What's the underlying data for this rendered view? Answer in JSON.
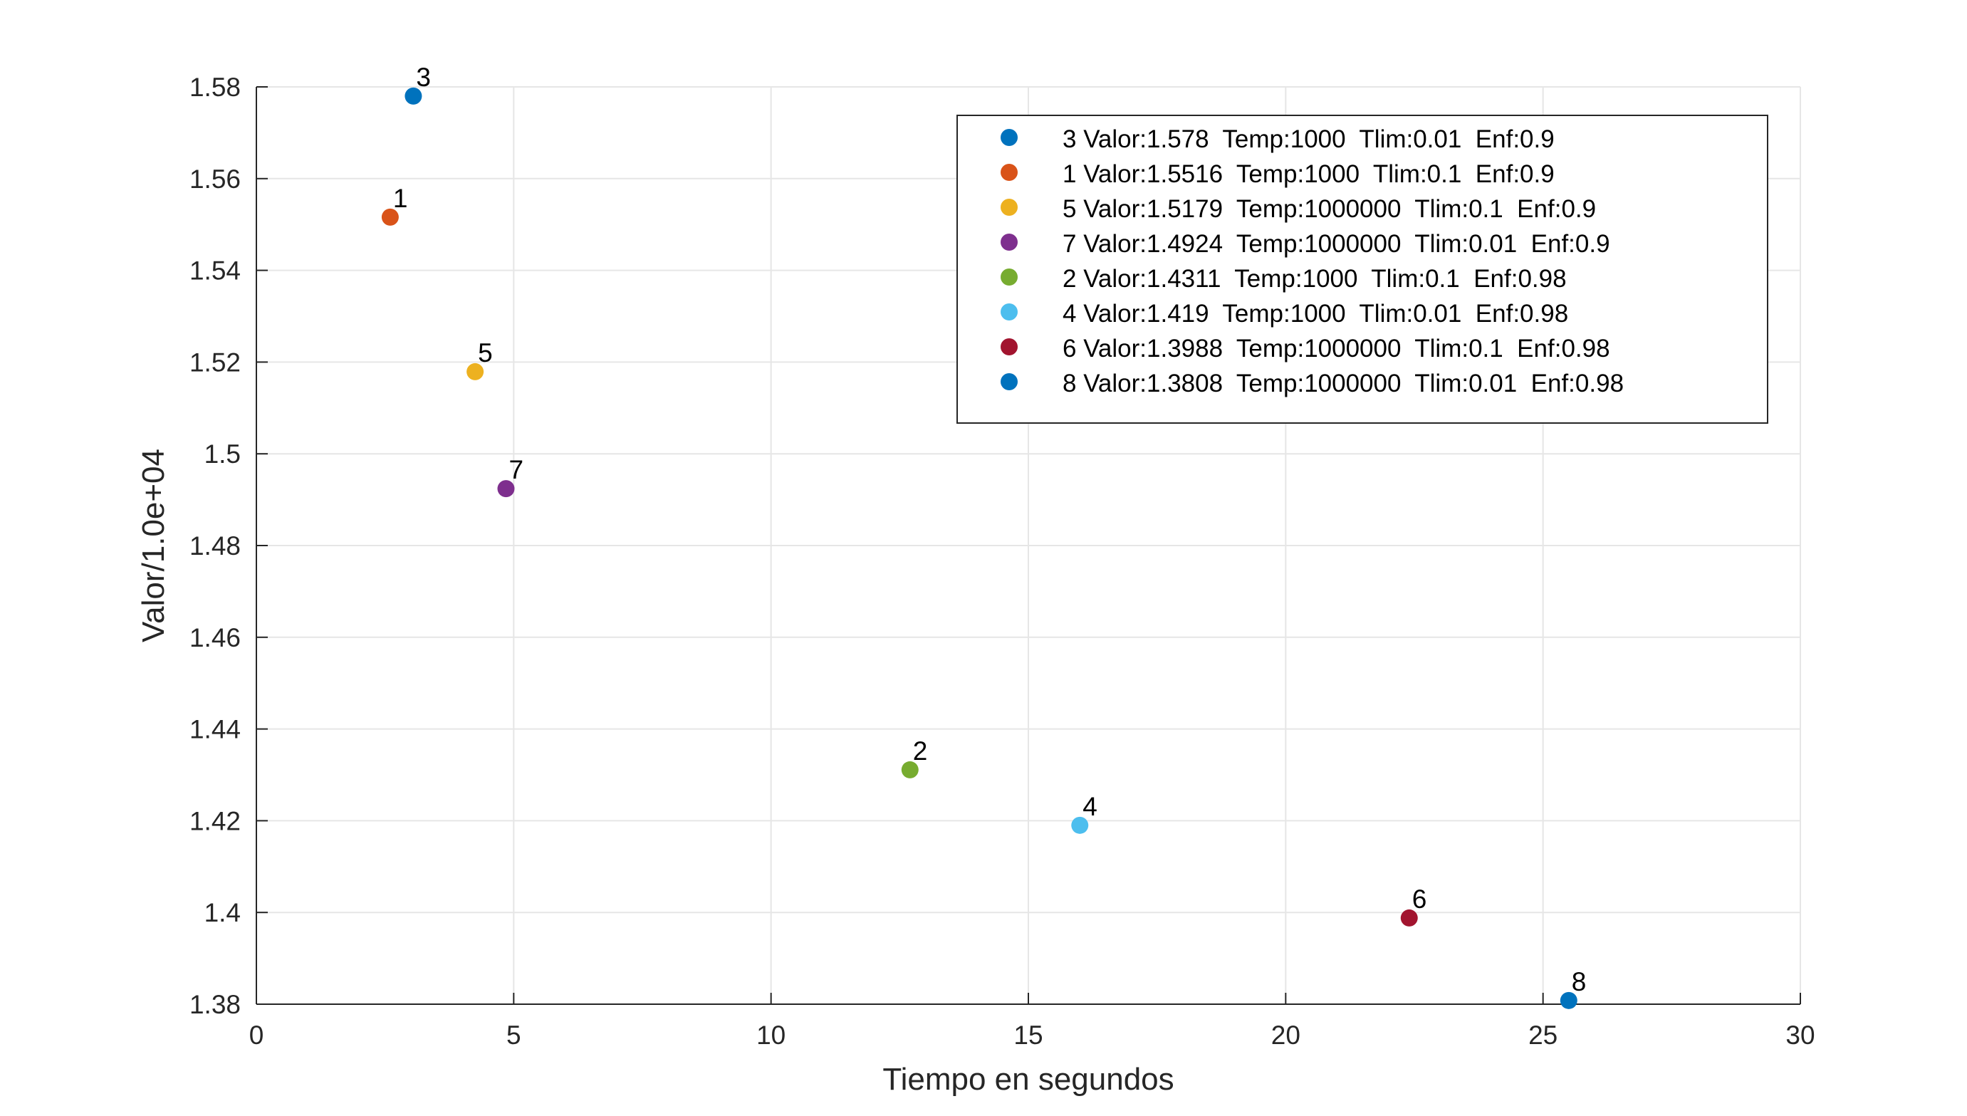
{
  "chart_data": {
    "type": "scatter",
    "xlabel": "Tiempo en segundos",
    "ylabel": "Valor/1.0e+04",
    "xlim": [
      0,
      30
    ],
    "ylim": [
      1.38,
      1.58
    ],
    "xticks": [
      "0",
      "5",
      "10",
      "15",
      "20",
      "25",
      "30"
    ],
    "yticks": [
      "1.38",
      "1.4",
      "1.42",
      "1.44",
      "1.46",
      "1.48",
      "1.5",
      "1.52",
      "1.54",
      "1.56",
      "1.58"
    ],
    "grid": true,
    "legend_position": "top-right",
    "series": [
      {
        "name": "3 Valor:1.578  Temp:1000  Tlim:0.01  Enf:0.9",
        "label": "3",
        "x": 3.05,
        "y": 1.578,
        "color": "#0072BD"
      },
      {
        "name": "1 Valor:1.5516  Temp:1000  Tlim:0.1  Enf:0.9",
        "label": "1",
        "x": 2.6,
        "y": 1.5516,
        "color": "#D95319"
      },
      {
        "name": "5 Valor:1.5179  Temp:1000000  Tlim:0.1  Enf:0.9",
        "label": "5",
        "x": 4.25,
        "y": 1.5179,
        "color": "#EDB120"
      },
      {
        "name": "7 Valor:1.4924  Temp:1000000  Tlim:0.01  Enf:0.9",
        "label": "7",
        "x": 4.85,
        "y": 1.4924,
        "color": "#7E2F8E"
      },
      {
        "name": "2 Valor:1.4311  Temp:1000  Tlim:0.1  Enf:0.98",
        "label": "2",
        "x": 12.7,
        "y": 1.4311,
        "color": "#77AC30"
      },
      {
        "name": "4 Valor:1.419  Temp:1000  Tlim:0.01  Enf:0.98",
        "label": "4",
        "x": 16.0,
        "y": 1.419,
        "color": "#4DBEEE"
      },
      {
        "name": "6 Valor:1.3988  Temp:1000000  Tlim:0.1  Enf:0.98",
        "label": "6",
        "x": 22.4,
        "y": 1.3988,
        "color": "#A2142F"
      },
      {
        "name": "8 Valor:1.3808  Temp:1000000  Tlim:0.01  Enf:0.98",
        "label": "8",
        "x": 25.5,
        "y": 1.3808,
        "color": "#0072BD"
      }
    ]
  }
}
